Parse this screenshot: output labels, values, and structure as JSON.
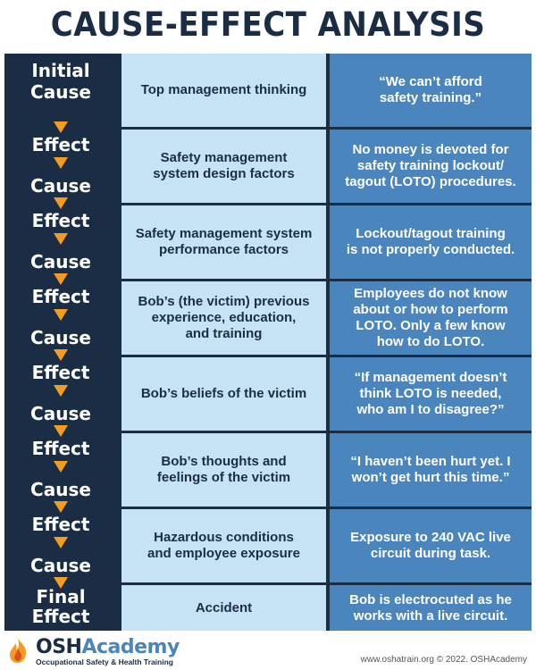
{
  "title": "CAUSE-EFFECT ANALYSIS",
  "rows": [
    {
      "col1_top": "Initial",
      "col1_bottom": "Cause",
      "col2": "Top management thinking",
      "col3": "“We can’t afford\nsafety training.”"
    },
    {
      "col1_top": "Effect",
      "col1_bottom": "Cause",
      "col2": "Safety management\nsystem design factors",
      "col3": "No money is devoted for\nsafety training lockout/\ntagout (LOTO) procedures."
    },
    {
      "col1_top": "Effect",
      "col1_bottom": "Cause",
      "col2": "Safety management system\nperformance factors",
      "col3": "Lockout/tagout training\nis not properly conducted."
    },
    {
      "col1_top": "Effect",
      "col1_bottom": "Cause",
      "col2": "Bob’s (the victim) previous\nexperience, education,\nand training",
      "col3": "Employees do not know\nabout or how to perform\nLOTO. Only a few know\nhow to do LOTO."
    },
    {
      "col1_top": "Effect",
      "col1_bottom": "Cause",
      "col2": "Bob’s beliefs of the victim",
      "col3": "“If management doesn’t\nthink LOTO is needed,\nwho am I to disagree?”"
    },
    {
      "col1_top": "Effect",
      "col1_bottom": "Cause",
      "col2": "Bob’s thoughts and\nfeelings of the victim",
      "col3": "“I haven’t been hurt yet. I\nwon’t get hurt this time.”"
    },
    {
      "col1_top": "Effect",
      "col1_bottom": "Cause",
      "col2": "Hazardous conditions\nand employee exposure",
      "col3": "Exposure to 240 VAC live\ncircuit during task."
    },
    {
      "col1_top": "Final",
      "col1_bottom": "Effect",
      "col2": "Accident",
      "col3": "Bob is electrocuted as he\nworks with a live circuit."
    }
  ],
  "footer": {
    "logo_osh": "OSH",
    "logo_academy": "Academy",
    "logo_tagline": "Occupational Safety & Health Training",
    "credit": "www.oshatrain.org © 2022. OSHAcademy"
  },
  "colors": {
    "navy": "#1b2d45",
    "light_blue": "#c6e3f6",
    "mid_blue": "#4a85bd",
    "arrow_orange": "#f39c1f"
  },
  "icons": {
    "logo": "flame-icon",
    "flow": "down-arrow-icon"
  }
}
